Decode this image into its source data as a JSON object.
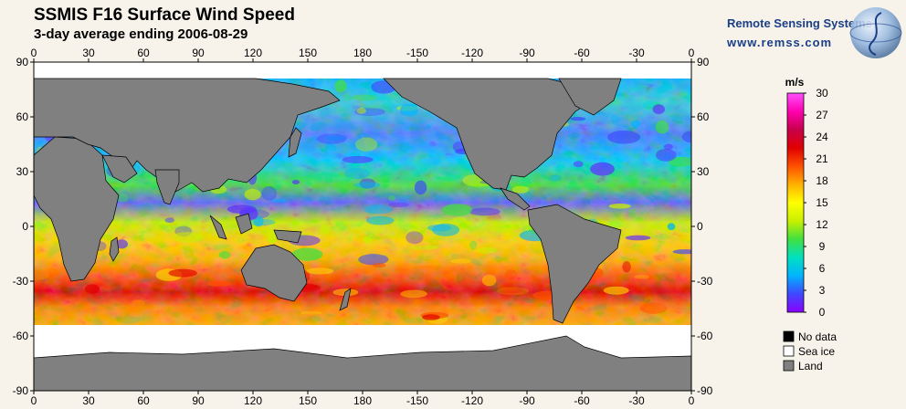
{
  "header": {
    "title": "SSMIS F16 Surface Wind Speed",
    "subtitle": "3-day average ending 2006-08-29"
  },
  "logo": {
    "name": "Remote Sensing Systems",
    "url": "www.remss.com"
  },
  "map": {
    "x_tick_labels": [
      "0",
      "30",
      "60",
      "90",
      "120",
      "150",
      "180",
      "-150",
      "-120",
      "-90",
      "-60",
      "-30",
      "0"
    ],
    "y_tick_labels": [
      "90",
      "60",
      "30",
      "0",
      "-30",
      "-60",
      "-90"
    ],
    "colors": {
      "land": "#808080",
      "sea_ice": "#ffffff",
      "no_data": "#000000"
    }
  },
  "colorbar": {
    "unit": "m/s",
    "tick_labels": [
      "30",
      "27",
      "24",
      "21",
      "18",
      "15",
      "12",
      "9",
      "6",
      "3",
      "0"
    ],
    "min": 0,
    "max": 30,
    "stops": [
      "#8b00ff",
      "#3f48ff",
      "#00b4ff",
      "#00e0c0",
      "#40e040",
      "#c8f000",
      "#ffff00",
      "#ffb000",
      "#ff5000",
      "#e00000",
      "#c8004a",
      "#ff00b0",
      "#ff50ff"
    ]
  },
  "legend": {
    "items": [
      {
        "label": "No data",
        "color": "#000000"
      },
      {
        "label": "Sea ice",
        "color": "#ffffff"
      },
      {
        "label": "Land",
        "color": "#808080"
      }
    ]
  }
}
